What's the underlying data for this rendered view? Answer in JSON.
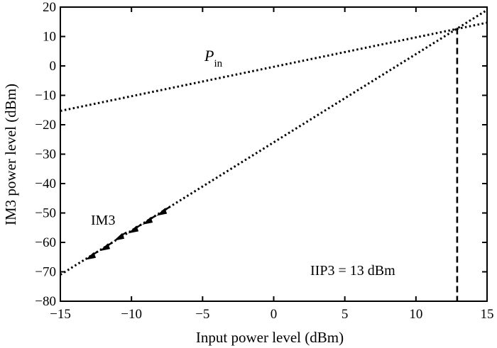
{
  "chart_data": {
    "type": "line",
    "xlabel": "Input power level (dBm)",
    "ylabel": "IM3 power level (dBm)",
    "xlim": [
      -15,
      15
    ],
    "ylim": [
      -80,
      20
    ],
    "x_ticks": [
      -15,
      -10,
      -5,
      0,
      5,
      10,
      15
    ],
    "x_tick_labels": [
      "−15",
      "−10",
      "−5",
      "0",
      "5",
      "10",
      "15"
    ],
    "y_ticks": [
      20,
      10,
      0,
      -10,
      -20,
      -30,
      -40,
      -50,
      -60,
      -70,
      -80
    ],
    "y_tick_labels": [
      "20",
      "10",
      "0",
      "−10",
      "−20",
      "−30",
      "−40",
      "−50",
      "−60",
      "−70",
      "−80"
    ],
    "grid": false,
    "series": [
      {
        "name": "P_in",
        "style": "dotted",
        "x": [
          -15,
          15
        ],
        "y": [
          -15.3,
          14.7
        ]
      },
      {
        "name": "IM3",
        "style": "dotted",
        "x": [
          -15,
          15
        ],
        "y": [
          -71,
          19
        ]
      },
      {
        "name": "",
        "style": "dashed",
        "x": [
          12.9,
          12.9
        ],
        "y": [
          12.9,
          -80
        ]
      }
    ],
    "measured_points": {
      "marker": "arrow",
      "x": [
        -13,
        -12,
        -11,
        -10,
        -9,
        -8
      ],
      "y": [
        -65,
        -62,
        -58.5,
        -56,
        -53,
        -50
      ]
    },
    "annotations": {
      "pin_label_main": "P",
      "pin_label_sub": "in",
      "im3_label": "IM3",
      "iip3_label": "IIP3 = 13 dBm"
    }
  }
}
